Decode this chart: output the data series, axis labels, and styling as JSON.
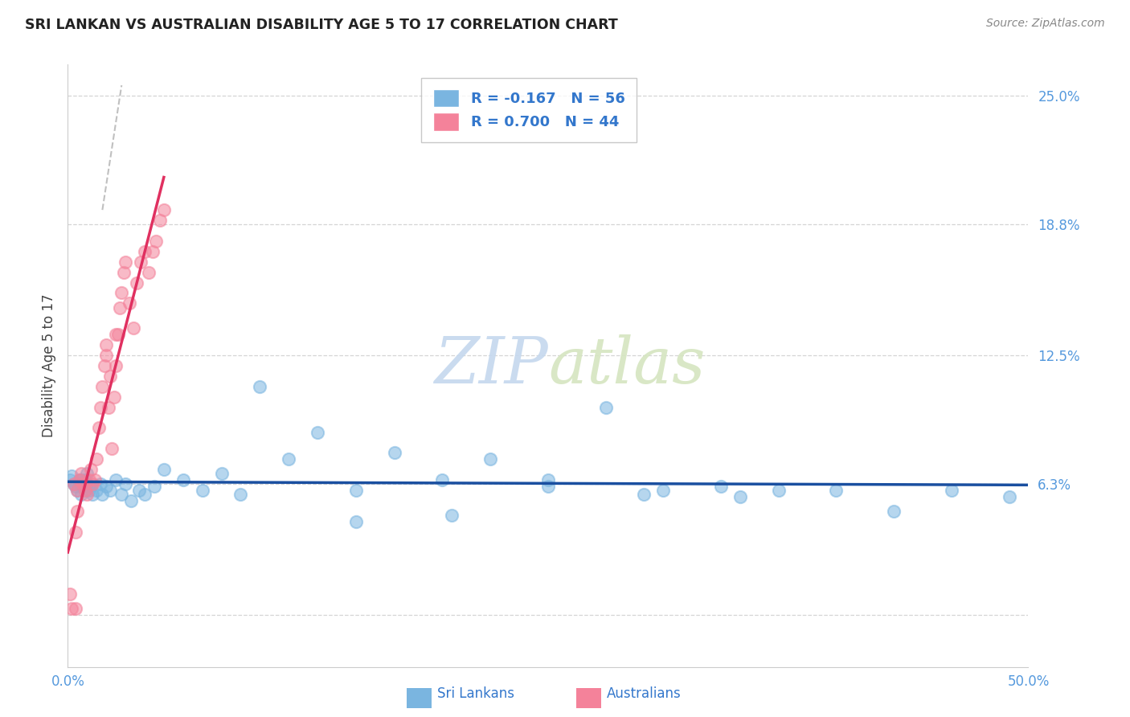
{
  "title": "SRI LANKAN VS AUSTRALIAN DISABILITY AGE 5 TO 17 CORRELATION CHART",
  "source": "Source: ZipAtlas.com",
  "ylabel": "Disability Age 5 to 17",
  "xmin": 0.0,
  "xmax": 0.5,
  "ymin": -0.025,
  "ymax": 0.265,
  "ytick_vals": [
    0.0,
    0.063,
    0.125,
    0.188,
    0.25
  ],
  "ytick_labels": [
    "",
    "6.3%",
    "12.5%",
    "18.8%",
    "25.0%"
  ],
  "xtick_vals": [
    0.0,
    0.1,
    0.2,
    0.3,
    0.4,
    0.5
  ],
  "xtick_labels": [
    "0.0%",
    "",
    "",
    "",
    "",
    "50.0%"
  ],
  "legend_line1": "R = -0.167   N = 56",
  "legend_line2": "R = 0.700   N = 44",
  "legend_label1": "Sri Lankans",
  "legend_label2": "Australians",
  "sri_lankans_color": "#7ab5e0",
  "australians_color": "#f4829a",
  "trend_sri_color": "#1a4fa0",
  "trend_aus_color": "#e03060",
  "trend_dashed_color": "#c0c0c0",
  "background_color": "#ffffff",
  "grid_color": "#d5d5d5",
  "watermark_zip": "ZIP",
  "watermark_atlas": "atlas",
  "sri_lankans_x": [
    0.001,
    0.002,
    0.003,
    0.004,
    0.005,
    0.006,
    0.006,
    0.007,
    0.007,
    0.008,
    0.008,
    0.009,
    0.009,
    0.01,
    0.01,
    0.011,
    0.012,
    0.013,
    0.015,
    0.017,
    0.018,
    0.02,
    0.022,
    0.025,
    0.028,
    0.03,
    0.033,
    0.037,
    0.04,
    0.045,
    0.05,
    0.06,
    0.07,
    0.08,
    0.09,
    0.1,
    0.115,
    0.13,
    0.15,
    0.17,
    0.195,
    0.22,
    0.25,
    0.28,
    0.31,
    0.34,
    0.37,
    0.4,
    0.43,
    0.46,
    0.15,
    0.2,
    0.25,
    0.3,
    0.35,
    0.49
  ],
  "sri_lankans_y": [
    0.065,
    0.067,
    0.063,
    0.062,
    0.06,
    0.065,
    0.063,
    0.058,
    0.065,
    0.062,
    0.064,
    0.06,
    0.065,
    0.063,
    0.068,
    0.06,
    0.062,
    0.058,
    0.06,
    0.063,
    0.058,
    0.062,
    0.06,
    0.065,
    0.058,
    0.063,
    0.055,
    0.06,
    0.058,
    0.062,
    0.07,
    0.065,
    0.06,
    0.068,
    0.058,
    0.11,
    0.075,
    0.088,
    0.06,
    0.078,
    0.065,
    0.075,
    0.065,
    0.1,
    0.06,
    0.062,
    0.06,
    0.06,
    0.05,
    0.06,
    0.045,
    0.048,
    0.062,
    0.058,
    0.057,
    0.057
  ],
  "australians_x": [
    0.001,
    0.002,
    0.003,
    0.004,
    0.005,
    0.006,
    0.007,
    0.008,
    0.009,
    0.01,
    0.011,
    0.012,
    0.013,
    0.014,
    0.015,
    0.016,
    0.017,
    0.018,
    0.019,
    0.02,
    0.021,
    0.022,
    0.023,
    0.024,
    0.025,
    0.026,
    0.027,
    0.028,
    0.029,
    0.03,
    0.032,
    0.034,
    0.036,
    0.038,
    0.04,
    0.042,
    0.044,
    0.046,
    0.048,
    0.05,
    0.004,
    0.005,
    0.02,
    0.025
  ],
  "australians_y": [
    0.01,
    0.003,
    0.063,
    0.003,
    0.06,
    0.065,
    0.068,
    0.063,
    0.06,
    0.058,
    0.065,
    0.07,
    0.063,
    0.065,
    0.075,
    0.09,
    0.1,
    0.11,
    0.12,
    0.13,
    0.1,
    0.115,
    0.08,
    0.105,
    0.12,
    0.135,
    0.148,
    0.155,
    0.165,
    0.17,
    0.15,
    0.138,
    0.16,
    0.17,
    0.175,
    0.165,
    0.175,
    0.18,
    0.19,
    0.195,
    0.04,
    0.05,
    0.125,
    0.135
  ]
}
